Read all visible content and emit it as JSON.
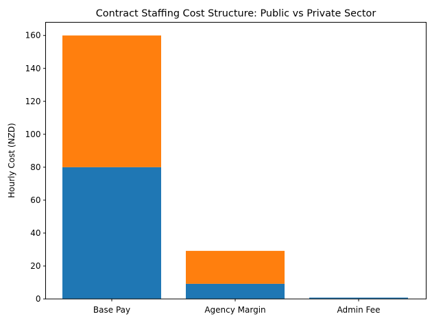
{
  "chart_data": {
    "type": "bar",
    "stacked": true,
    "title": "Contract Staffing Cost Structure: Public vs Private Sector",
    "xlabel": "",
    "ylabel": "Hourly Cost (NZD)",
    "categories": [
      "Base Pay",
      "Agency Margin",
      "Admin Fee"
    ],
    "series": [
      {
        "values": [
          80,
          9.2,
          0.8
        ],
        "color": "#1f77b4"
      },
      {
        "values": [
          80,
          20,
          0
        ],
        "color": "#ff7f0e"
      }
    ],
    "ylim": [
      0,
      168
    ],
    "yticks": [
      0,
      20,
      40,
      60,
      80,
      100,
      120,
      140,
      160
    ],
    "grid": false,
    "legend": "none"
  }
}
